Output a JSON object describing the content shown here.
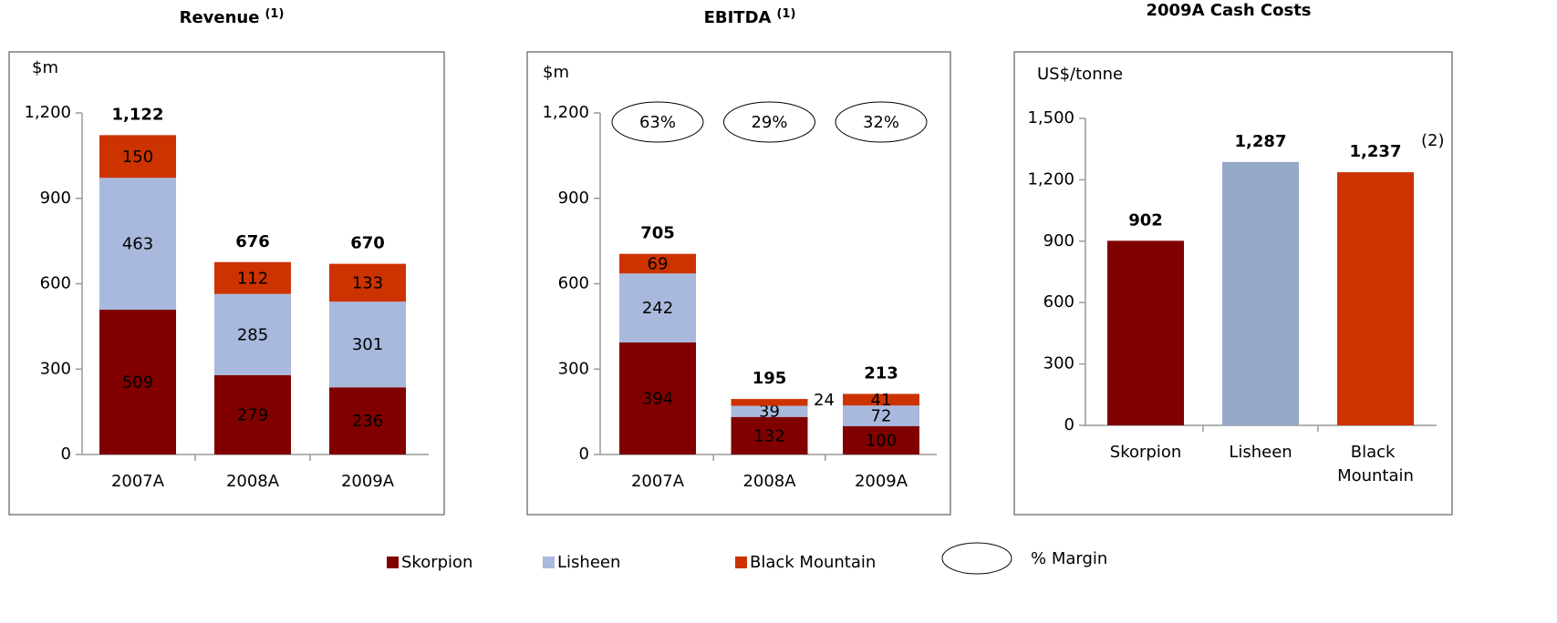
{
  "chart_data": [
    {
      "type": "bar",
      "stacked": true,
      "title": "Revenue",
      "title_note": "(1)",
      "unit_label": "$m",
      "categories": [
        "2007A",
        "2008A",
        "2009A"
      ],
      "series": [
        {
          "name": "Skorpion",
          "color": "#800000",
          "values": [
            509,
            279,
            236
          ]
        },
        {
          "name": "Lisheen",
          "color": "#a9b9dd",
          "values": [
            463,
            285,
            301
          ]
        },
        {
          "name": "Black Mountain",
          "color": "#cc3300",
          "values": [
            150,
            112,
            133
          ]
        }
      ],
      "totals": [
        1122,
        676,
        670
      ],
      "total_labels": [
        "1,122",
        "676",
        "670"
      ],
      "ylim": [
        0,
        1200
      ],
      "yticks": [
        0,
        300,
        600,
        900,
        {
          "value": 1200,
          "label": "1,200"
        }
      ]
    },
    {
      "type": "bar",
      "stacked": true,
      "title": "EBITDA",
      "title_note": "(1)",
      "unit_label": "$m",
      "categories": [
        "2007A",
        "2008A",
        "2009A"
      ],
      "series": [
        {
          "name": "Skorpion",
          "color": "#800000",
          "values": [
            394,
            132,
            100
          ]
        },
        {
          "name": "Lisheen",
          "color": "#a9b9dd",
          "values": [
            242,
            39,
            72
          ]
        },
        {
          "name": "Black Mountain",
          "color": "#cc3300",
          "values": [
            69,
            24,
            41
          ]
        }
      ],
      "totals": [
        705,
        195,
        213
      ],
      "margins": [
        63,
        29,
        32
      ],
      "margin_labels": [
        "63%",
        "29%",
        "32%"
      ],
      "margin_label": "% Margin",
      "ylim": [
        0,
        1200
      ],
      "yticks": [
        0,
        300,
        600,
        900,
        {
          "value": 1200,
          "label": "1,200"
        }
      ]
    },
    {
      "type": "bar",
      "title": "2009A Cash Costs",
      "unit_label": "US$/tonne",
      "categories": [
        "Skorpion",
        "Lisheen",
        "Black Mountain"
      ],
      "values": [
        902,
        1287,
        1237
      ],
      "value_labels": [
        "902",
        "1,287",
        "1,237"
      ],
      "value_notes": [
        null,
        null,
        "(2)"
      ],
      "colors": [
        "#800000",
        "#95a9c9",
        "#cc3300"
      ],
      "ylim": [
        0,
        1500
      ],
      "yticks": [
        0,
        300,
        600,
        900,
        {
          "value": 1200,
          "label": "1,200"
        },
        {
          "value": 1500,
          "label": "1,500"
        }
      ]
    }
  ]
}
